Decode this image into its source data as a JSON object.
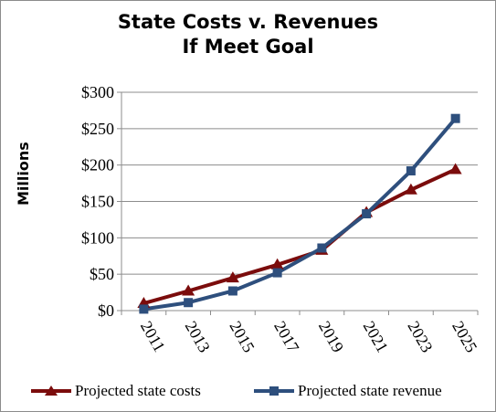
{
  "chart_data": {
    "type": "line",
    "title": "State Costs v. Revenues",
    "subtitle": "If Meet Goal",
    "ylabel": "Millions",
    "xlabel": "",
    "categories": [
      "2011",
      "2013",
      "2015",
      "2017",
      "2019",
      "2021",
      "2023",
      "2025"
    ],
    "y_ticks": [
      "$0",
      "$50",
      "$100",
      "$150",
      "$200",
      "$250",
      "$300"
    ],
    "ylim": [
      0,
      300
    ],
    "grid": true,
    "legend_position": "bottom",
    "series": [
      {
        "name": "Projected state costs",
        "color": "#7b0c0c",
        "marker": "triangle",
        "values": [
          10,
          27,
          45,
          63,
          83,
          135,
          166,
          194
        ]
      },
      {
        "name": "Projected state revenue",
        "color": "#2e4f7d",
        "marker": "square",
        "values": [
          2,
          11,
          27,
          52,
          86,
          133,
          192,
          264
        ]
      }
    ]
  }
}
